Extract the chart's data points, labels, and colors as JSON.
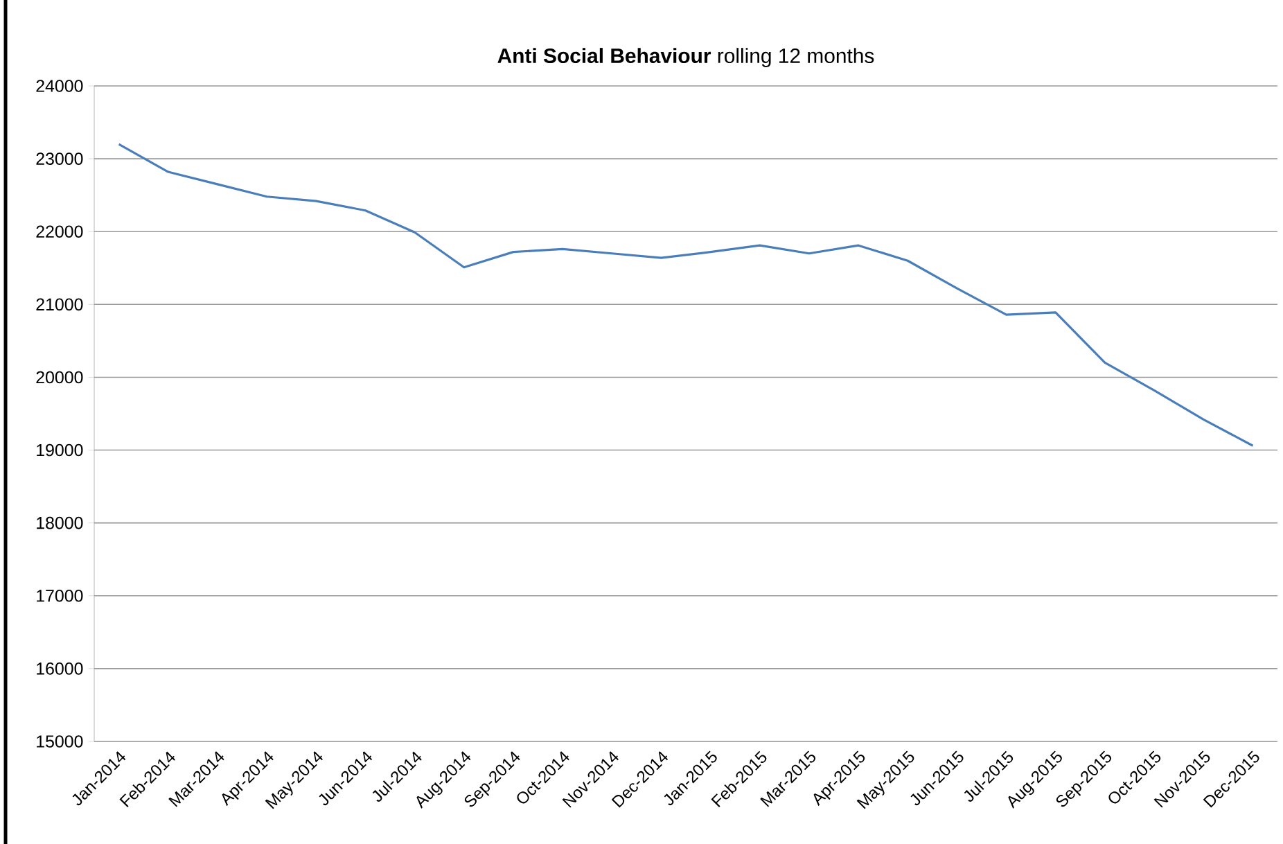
{
  "chart_data": {
    "type": "line",
    "title": "**Anti Social Behaviour** rolling 12 months",
    "categories": [
      "Jan-2014",
      "Feb-2014",
      "Mar-2014",
      "Apr-2014",
      "May-2014",
      "Jun-2014",
      "Jul-2014",
      "Aug-2014",
      "Sep-2014",
      "Oct-2014",
      "Nov-2014",
      "Dec-2014",
      "Jan-2015",
      "Feb-2015",
      "Mar-2015",
      "Apr-2015",
      "May-2015",
      "Jun-2015",
      "Jul-2015",
      "Aug-2015",
      "Sep-2015",
      "Oct-2015",
      "Nov-2015",
      "Dec-2015"
    ],
    "series": [
      {
        "color": "#4a7ebb",
        "values": [
          23200,
          22820,
          22650,
          22480,
          22420,
          22290,
          21990,
          21510,
          21720,
          21760,
          21700,
          21640,
          21720,
          21810,
          21700,
          21810,
          21600,
          21220,
          20860,
          20890,
          20200,
          19820,
          19420,
          19060
        ]
      }
    ],
    "ylim": [
      15000,
      24000
    ],
    "yticks": [
      15000,
      16000,
      17000,
      18000,
      19000,
      20000,
      21000,
      22000,
      23000,
      24000
    ],
    "grid": "y",
    "marker": "none",
    "line_style": "solid"
  }
}
